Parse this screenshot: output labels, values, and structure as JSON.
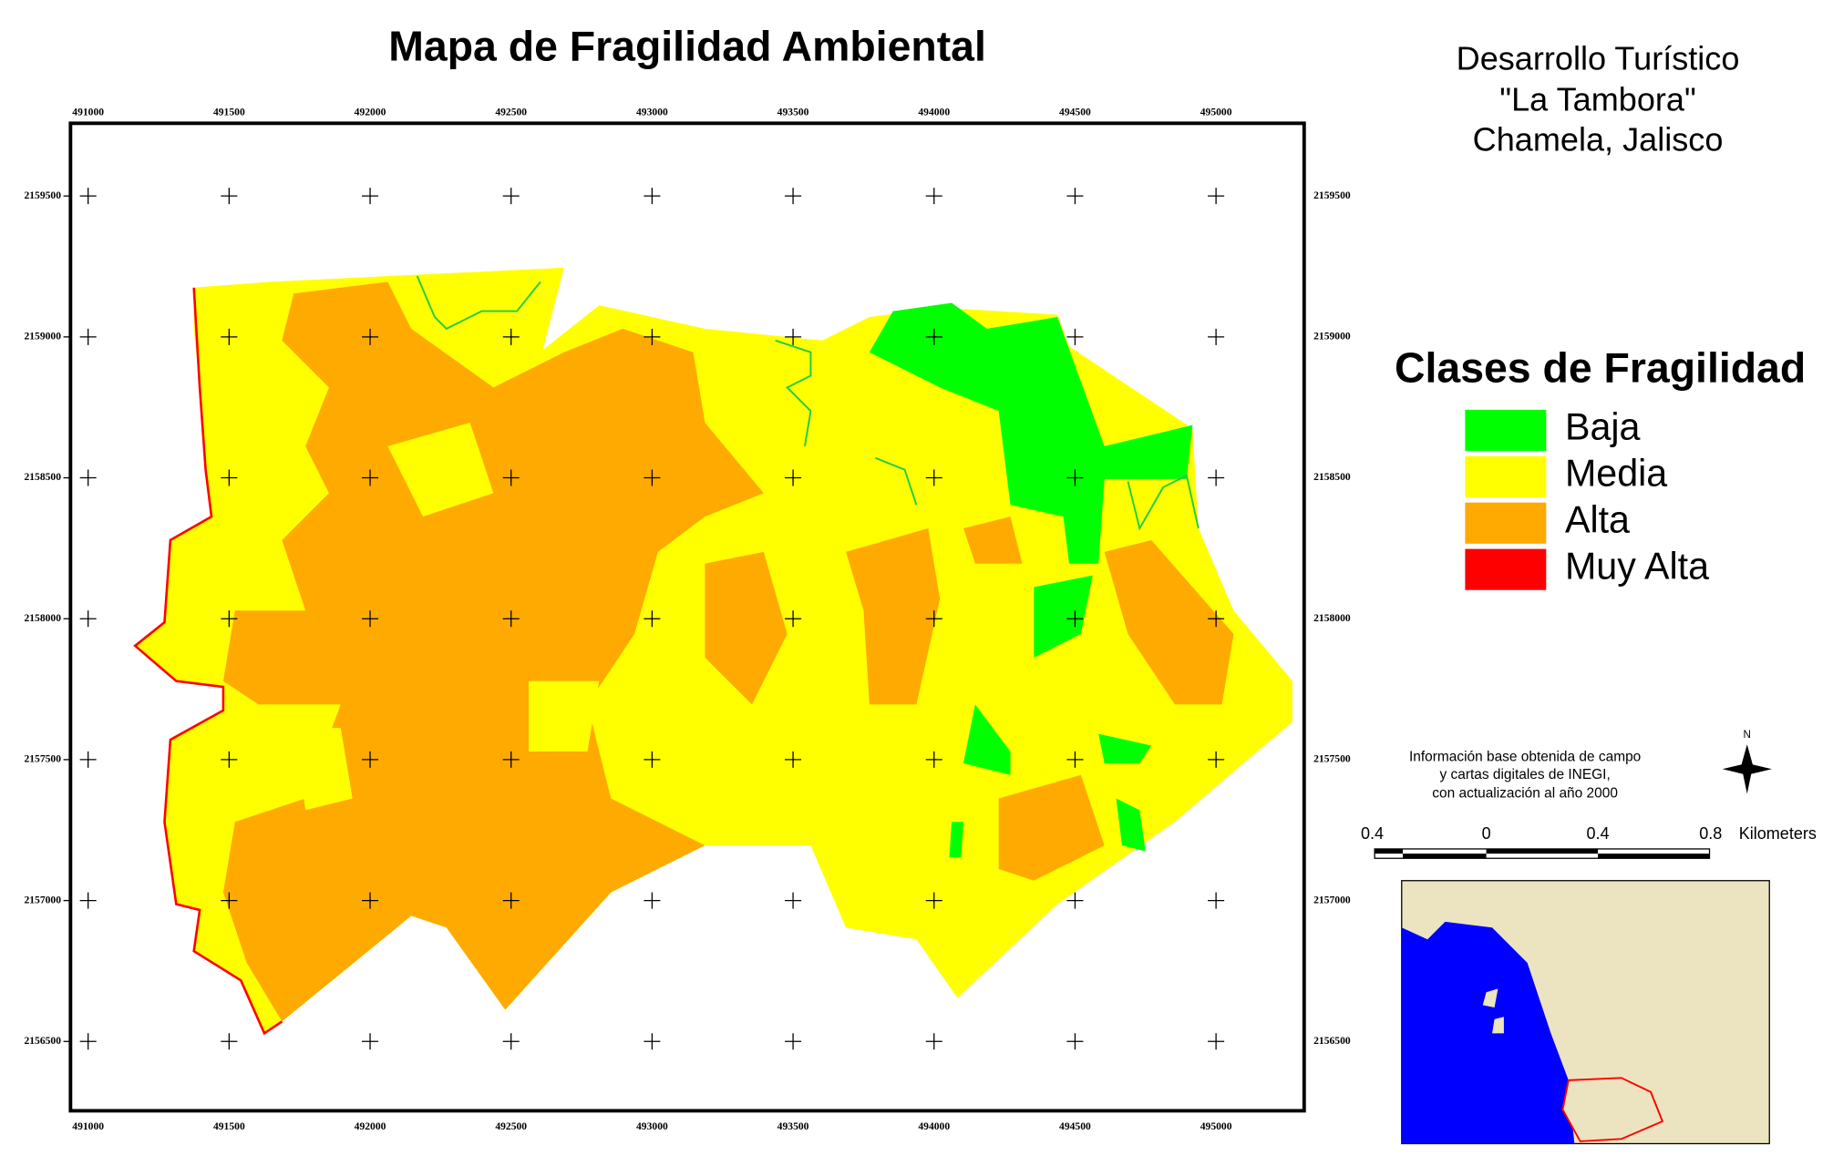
{
  "title": "Mapa de Fragilidad Ambiental",
  "header": {
    "lines": [
      "Desarrollo Turístico",
      "\"La Tambora\"",
      "Chamela, Jalisco"
    ]
  },
  "legend": {
    "title": "Clases de Fragilidad",
    "items": [
      {
        "label": "Baja",
        "color": "#00ff00"
      },
      {
        "label": "Media",
        "color": "#ffff00"
      },
      {
        "label": "Alta",
        "color": "#ffaa00"
      },
      {
        "label": "Muy Alta",
        "color": "#ff0000"
      }
    ]
  },
  "grid": {
    "xlim": [
      490937.5,
      495312.5
    ],
    "ylim": [
      2156254,
      2159758
    ],
    "xticks": [
      491000,
      491500,
      492000,
      492500,
      493000,
      493500,
      494000,
      494500,
      495000
    ],
    "yticks": [
      2156500,
      2157000,
      2157500,
      2158000,
      2158500,
      2159000,
      2159500
    ]
  },
  "note": {
    "lines": [
      "Información base obtenida de campo",
      "y cartas digitales de INEGI,",
      "con actualización al año 2000"
    ]
  },
  "scale_bar": {
    "labels": [
      "0.4",
      "0",
      "0.4",
      "0.8"
    ],
    "unit": "Kilometers"
  },
  "north": "N"
}
